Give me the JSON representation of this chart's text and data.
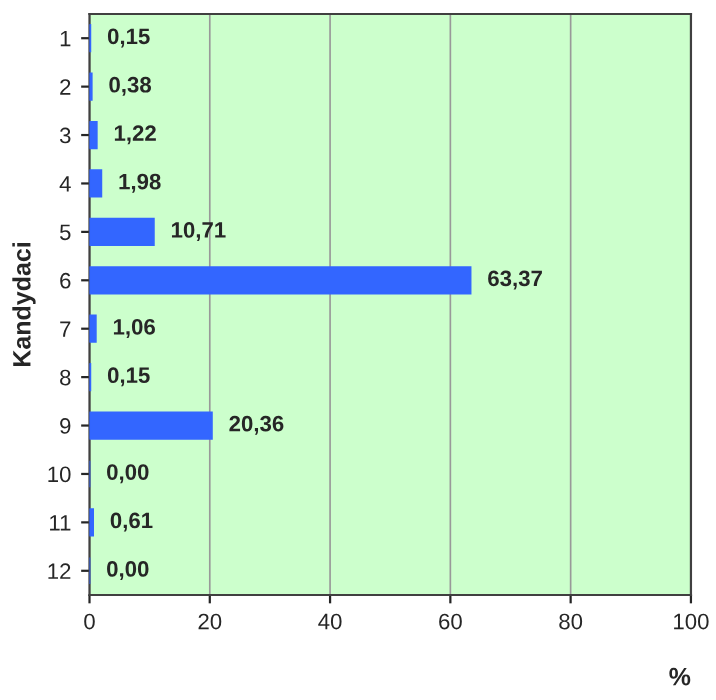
{
  "chart_data": {
    "type": "bar",
    "orientation": "horizontal",
    "ylabel": "Kandydaci",
    "xlabel": "%",
    "categories": [
      "1",
      "2",
      "3",
      "4",
      "5",
      "6",
      "7",
      "8",
      "9",
      "10",
      "11",
      "12"
    ],
    "values": [
      0.15,
      0.38,
      1.22,
      1.98,
      10.71,
      63.37,
      1.06,
      0.15,
      20.36,
      0.0,
      0.61,
      0.0
    ],
    "value_labels": [
      "0,15",
      "0,38",
      "1,22",
      "1,98",
      "10,71",
      "63,37",
      "1,06",
      "0,15",
      "20,36",
      "0,00",
      "0,61",
      "0,00"
    ],
    "color": "#3366ff",
    "xlim": [
      0,
      100
    ],
    "xticks": [
      0,
      20,
      40,
      60,
      80,
      100
    ],
    "grid": "x",
    "legend": false
  }
}
